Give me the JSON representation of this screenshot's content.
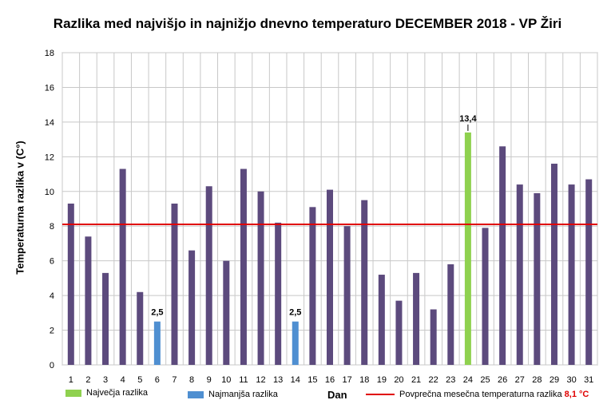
{
  "chart_data": {
    "type": "bar",
    "title": "Razlika med najvišjo  in najnižjo  dnevno  temperaturo  DECEMBER  2018 - VP Žiri",
    "xlabel": "Dan",
    "ylabel": "Temperaturna razlika v (C°)",
    "ylim": [
      0,
      18
    ],
    "yticks": [
      "0",
      "2",
      "4",
      "6",
      "8",
      "10",
      "12",
      "14",
      "16",
      "18"
    ],
    "categories": [
      "1",
      "2",
      "3",
      "4",
      "5",
      "6",
      "7",
      "8",
      "9",
      "10",
      "11",
      "12",
      "13",
      "14",
      "15",
      "16",
      "17",
      "18",
      "19",
      "20",
      "21",
      "22",
      "23",
      "24",
      "25",
      "26",
      "27",
      "28",
      "29",
      "30",
      "31"
    ],
    "values": [
      9.3,
      7.4,
      5.3,
      11.3,
      4.2,
      2.5,
      9.3,
      6.6,
      10.3,
      6.0,
      11.3,
      10.0,
      8.2,
      2.5,
      9.1,
      10.1,
      8.0,
      9.5,
      5.2,
      3.7,
      5.3,
      3.2,
      5.8,
      13.4,
      7.9,
      12.6,
      10.4,
      9.9,
      11.6,
      10.4,
      10.7
    ],
    "max_day_index": 23,
    "min_day_indices": [
      5,
      13
    ],
    "average": 8.1,
    "data_labels": [
      {
        "index": 5,
        "text": "2,5"
      },
      {
        "index": 13,
        "text": "2,5"
      },
      {
        "index": 23,
        "text": "13,4"
      }
    ],
    "colors": {
      "bar": "#5c4a7d",
      "max": "#8fd14f",
      "min": "#4f8fd1",
      "average_line": "#e00000",
      "grid": "#c8c8c8"
    }
  },
  "legend": {
    "max_label": "Največja razlika",
    "min_label": "Najmanjša razlika",
    "avg_label": "Povprečna mesečna temperaturna razlika",
    "avg_value": "8,1 °C"
  }
}
